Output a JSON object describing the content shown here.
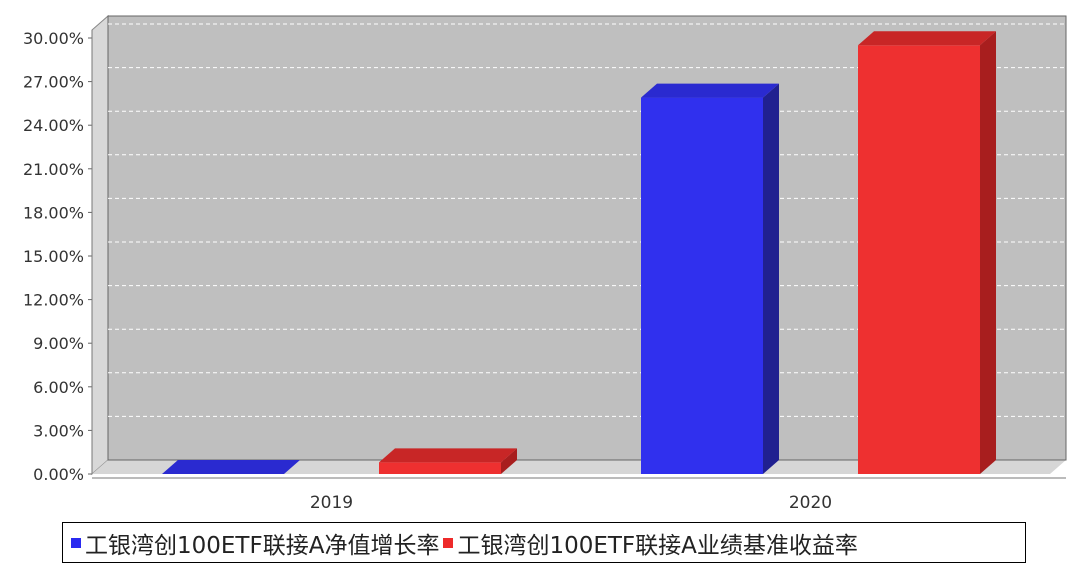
{
  "chart_data": {
    "type": "bar",
    "categories": [
      "2019",
      "2020"
    ],
    "series": [
      {
        "name": "工银湾创100ETF联接A净值增长率",
        "values": [
          -0.2,
          25.9
        ],
        "color": "#3030ee"
      },
      {
        "name": "工银湾创100ETF联接A业绩基准收益率",
        "values": [
          0.8,
          29.5
        ],
        "color": "#ee3030"
      }
    ],
    "y_ticks": [
      "0.00%",
      "3.00%",
      "6.00%",
      "9.00%",
      "12.00%",
      "15.00%",
      "18.00%",
      "21.00%",
      "24.00%",
      "27.00%",
      "30.00%"
    ],
    "ylim": [
      0,
      30
    ],
    "grid": true,
    "legend_position": "bottom",
    "style": "3d-bar",
    "title": "",
    "xlabel": "",
    "ylabel": ""
  }
}
